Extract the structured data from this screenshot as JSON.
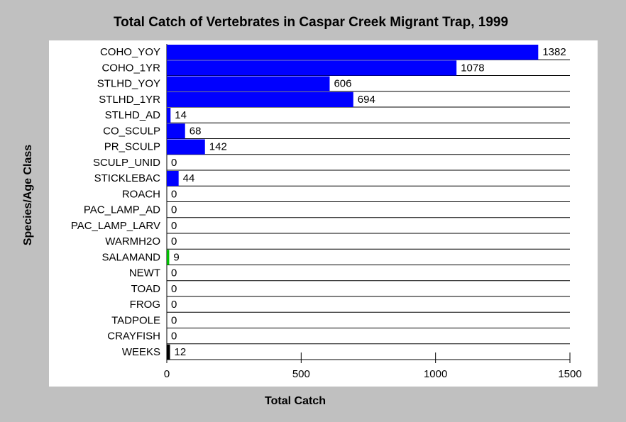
{
  "chart_data": {
    "type": "bar",
    "orientation": "horizontal",
    "title": "Total Catch of Vertebrates in Caspar Creek Migrant Trap, 1999",
    "xlabel": "Total Catch",
    "ylabel": "Species/Age Class",
    "categories": [
      "COHO_YOY",
      "COHO_1YR",
      "STLHD_YOY",
      "STLHD_1YR",
      "STLHD_AD",
      "CO_SCULP",
      "PR_SCULP",
      "SCULP_UNID",
      "STICKLEBAC",
      "ROACH",
      "PAC_LAMP_AD",
      "PAC_LAMP_LARV",
      "WARMH2O",
      "SALAMAND",
      "NEWT",
      "TOAD",
      "FROG",
      "TADPOLE",
      "CRAYFISH",
      "WEEKS"
    ],
    "values": [
      1382,
      1078,
      606,
      694,
      14,
      68,
      142,
      0,
      44,
      0,
      0,
      0,
      0,
      9,
      0,
      0,
      0,
      0,
      0,
      12
    ],
    "colors": [
      "#0000ff",
      "#0000ff",
      "#0000ff",
      "#0000ff",
      "#0000ff",
      "#0000ff",
      "#0000ff",
      "#0000ff",
      "#0000ff",
      "#0000ff",
      "#0000ff",
      "#0000ff",
      "#0000ff",
      "#00c000",
      "#0000ff",
      "#0000ff",
      "#0000ff",
      "#0000ff",
      "#0000ff",
      "#000000"
    ],
    "xlim": [
      0,
      1500
    ],
    "xticks": [
      0,
      500,
      1000,
      1500
    ]
  }
}
